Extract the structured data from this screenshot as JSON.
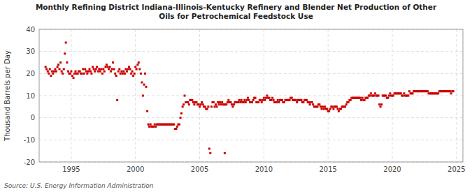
{
  "chart_data": {
    "type": "scatter",
    "title": "Monthly Refining District Indiana-Illinois-Kentucky Refinery and Blender Net Production of Other\nOils for Petrochemical Feedstock Use",
    "y_label": "Thousand Barrels per Day",
    "source": "Source: U.S. Energy Information Administration",
    "color": "#cc0000",
    "marker": "square",
    "grid": true,
    "xlim": [
      1992.5,
      2025.5
    ],
    "xticks": [
      1995,
      2000,
      2005,
      2010,
      2015,
      2020,
      2025
    ],
    "ylim": [
      -20,
      40
    ],
    "yticks": [
      -20,
      -10,
      0,
      10,
      20,
      30,
      40
    ],
    "x": [
      1993.0,
      1993.08,
      1993.17,
      1993.25,
      1993.33,
      1993.42,
      1993.5,
      1993.58,
      1993.67,
      1993.75,
      1993.83,
      1993.92,
      1994.0,
      1994.08,
      1994.17,
      1994.25,
      1994.33,
      1994.42,
      1994.5,
      1994.58,
      1994.67,
      1994.75,
      1994.83,
      1994.92,
      1995.0,
      1995.08,
      1995.17,
      1995.25,
      1995.33,
      1995.42,
      1995.5,
      1995.58,
      1995.67,
      1995.75,
      1995.83,
      1995.92,
      1996.0,
      1996.08,
      1996.17,
      1996.25,
      1996.33,
      1996.42,
      1996.5,
      1996.58,
      1996.67,
      1996.75,
      1996.83,
      1996.92,
      1997.0,
      1997.08,
      1997.17,
      1997.25,
      1997.33,
      1997.42,
      1997.5,
      1997.58,
      1997.67,
      1997.75,
      1997.83,
      1997.92,
      1998.0,
      1998.08,
      1998.17,
      1998.25,
      1998.33,
      1998.42,
      1998.5,
      1998.58,
      1998.67,
      1998.75,
      1998.83,
      1998.92,
      1999.0,
      1999.08,
      1999.17,
      1999.25,
      1999.33,
      1999.42,
      1999.5,
      1999.58,
      1999.67,
      1999.75,
      1999.83,
      1999.92,
      2000.0,
      2000.08,
      2000.17,
      2000.25,
      2000.33,
      2000.42,
      2000.5,
      2000.58,
      2000.67,
      2000.75,
      2000.83,
      2000.92,
      2001.0,
      2001.08,
      2001.17,
      2001.25,
      2001.33,
      2001.42,
      2001.5,
      2001.58,
      2001.67,
      2001.75,
      2001.83,
      2001.92,
      2002.0,
      2002.08,
      2002.17,
      2002.25,
      2002.33,
      2002.42,
      2002.5,
      2002.58,
      2002.67,
      2002.75,
      2002.83,
      2002.92,
      2003.0,
      2003.08,
      2003.17,
      2003.25,
      2003.33,
      2003.42,
      2003.5,
      2003.58,
      2003.67,
      2003.75,
      2003.83,
      2003.92,
      2004.0,
      2004.08,
      2004.17,
      2004.25,
      2004.33,
      2004.42,
      2004.5,
      2004.58,
      2004.67,
      2004.75,
      2004.83,
      2004.92,
      2005.0,
      2005.08,
      2005.17,
      2005.25,
      2005.33,
      2005.42,
      2005.5,
      2005.58,
      2005.67,
      2005.75,
      2005.83,
      2005.92,
      2006.0,
      2006.08,
      2006.17,
      2006.25,
      2006.33,
      2006.42,
      2006.5,
      2006.58,
      2006.67,
      2006.75,
      2006.83,
      2006.92,
      2006.95,
      2007.0,
      2007.08,
      2007.17,
      2007.25,
      2007.33,
      2007.42,
      2007.5,
      2007.58,
      2007.67,
      2007.75,
      2007.83,
      2007.92,
      2008.0,
      2008.08,
      2008.17,
      2008.25,
      2008.33,
      2008.42,
      2008.5,
      2008.58,
      2008.67,
      2008.75,
      2008.83,
      2008.92,
      2009.0,
      2009.08,
      2009.17,
      2009.25,
      2009.33,
      2009.42,
      2009.5,
      2009.58,
      2009.67,
      2009.75,
      2009.83,
      2009.92,
      2010.0,
      2010.08,
      2010.17,
      2010.25,
      2010.33,
      2010.42,
      2010.5,
      2010.58,
      2010.67,
      2010.75,
      2010.83,
      2010.92,
      2011.0,
      2011.08,
      2011.17,
      2011.25,
      2011.33,
      2011.42,
      2011.5,
      2011.58,
      2011.67,
      2011.75,
      2011.83,
      2011.92,
      2012.0,
      2012.08,
      2012.17,
      2012.25,
      2012.33,
      2012.42,
      2012.5,
      2012.58,
      2012.67,
      2012.75,
      2012.83,
      2012.92,
      2013.0,
      2013.08,
      2013.17,
      2013.25,
      2013.33,
      2013.42,
      2013.5,
      2013.58,
      2013.67,
      2013.75,
      2013.83,
      2013.92,
      2014.0,
      2014.08,
      2014.17,
      2014.25,
      2014.33,
      2014.42,
      2014.5,
      2014.58,
      2014.67,
      2014.75,
      2014.83,
      2014.92,
      2015.0,
      2015.08,
      2015.17,
      2015.25,
      2015.33,
      2015.42,
      2015.5,
      2015.58,
      2015.67,
      2015.75,
      2015.83,
      2015.92,
      2016.0,
      2016.08,
      2016.17,
      2016.25,
      2016.33,
      2016.42,
      2016.5,
      2016.58,
      2016.67,
      2016.75,
      2016.83,
      2016.92,
      2017.0,
      2017.08,
      2017.17,
      2017.25,
      2017.33,
      2017.42,
      2017.5,
      2017.58,
      2017.67,
      2017.75,
      2017.83,
      2017.92,
      2018.0,
      2018.08,
      2018.17,
      2018.25,
      2018.33,
      2018.42,
      2018.5,
      2018.58,
      2018.67,
      2018.75,
      2018.83,
      2018.92,
      2019.0,
      2019.08,
      2019.17,
      2019.25,
      2019.33,
      2019.42,
      2019.5,
      2019.58,
      2019.67,
      2019.75,
      2019.83,
      2019.92,
      2020.0,
      2020.08,
      2020.17,
      2020.25,
      2020.33,
      2020.42,
      2020.5,
      2020.58,
      2020.67,
      2020.75,
      2020.83,
      2020.92,
      2021.0,
      2021.08,
      2021.17,
      2021.25,
      2021.33,
      2021.42,
      2021.5,
      2021.58,
      2021.67,
      2021.75,
      2021.83,
      2021.92,
      2022.0,
      2022.08,
      2022.17,
      2022.25,
      2022.33,
      2022.42,
      2022.5,
      2022.58,
      2022.67,
      2022.75,
      2022.83,
      2022.92,
      2023.0,
      2023.08,
      2023.17,
      2023.25,
      2023.33,
      2023.42,
      2023.5,
      2023.58,
      2023.67,
      2023.75,
      2023.83,
      2023.92,
      2024.0,
      2024.08,
      2024.17,
      2024.25,
      2024.33,
      2024.42,
      2024.5,
      2024.58,
      2024.67,
      2024.75
    ],
    "values": [
      23,
      22,
      21,
      20,
      22,
      19,
      21,
      20,
      21,
      22,
      21,
      23,
      24,
      22,
      25,
      21,
      20,
      22,
      29,
      34,
      25,
      21,
      20,
      20,
      21,
      19,
      18,
      20,
      21,
      20,
      20,
      21,
      21,
      20,
      20,
      22,
      20,
      22,
      21,
      20,
      21,
      22,
      21,
      20,
      23,
      22,
      21,
      22,
      23,
      21,
      22,
      21,
      22,
      20,
      22,
      21,
      23,
      24,
      23,
      22,
      23,
      21,
      22,
      25,
      22,
      20,
      19,
      8,
      21,
      22,
      20,
      21,
      20,
      21,
      20,
      22,
      21,
      22,
      23,
      22,
      20,
      21,
      19,
      20,
      23,
      22,
      24,
      25,
      22,
      20,
      16,
      10,
      15,
      20,
      14,
      3,
      -3,
      -4,
      -3,
      -4,
      -4,
      -4,
      -3,
      -4,
      -3,
      -3,
      -3,
      -3,
      -3,
      -3,
      -3,
      -3,
      -3,
      -3,
      -3,
      -3,
      -3,
      -3,
      -3,
      -3,
      -3,
      -5,
      -5,
      -4,
      -3,
      -3,
      0,
      2,
      5,
      6,
      10,
      7,
      7,
      7,
      6,
      8,
      8,
      8,
      7,
      6,
      7,
      7,
      6,
      6,
      5,
      6,
      7,
      6,
      5,
      5,
      4,
      4,
      5,
      -14,
      -16,
      5,
      7,
      7,
      5,
      6,
      5,
      7,
      6,
      7,
      6,
      7,
      6,
      6,
      -16,
      6,
      6,
      7,
      8,
      7,
      7,
      6,
      5,
      6,
      7,
      7,
      7,
      7,
      8,
      7,
      8,
      7,
      7,
      8,
      7,
      8,
      9,
      8,
      7,
      7,
      7,
      8,
      9,
      9,
      7,
      7,
      7,
      8,
      8,
      7,
      8,
      9,
      8,
      9,
      10,
      9,
      9,
      8,
      8,
      9,
      8,
      7,
      7,
      7,
      8,
      7,
      8,
      8,
      8,
      7,
      7,
      8,
      8,
      8,
      8,
      8,
      9,
      9,
      8,
      8,
      8,
      8,
      7,
      8,
      8,
      8,
      8,
      7,
      7,
      8,
      8,
      8,
      7,
      7,
      6,
      7,
      7,
      6,
      5,
      5,
      5,
      5,
      6,
      6,
      5,
      4,
      5,
      4,
      5,
      4,
      4,
      3,
      3,
      4,
      5,
      5,
      4,
      5,
      5,
      5,
      4,
      3,
      4,
      4,
      5,
      5,
      5,
      5,
      6,
      7,
      7,
      8,
      8,
      9,
      9,
      9,
      9,
      9,
      9,
      9,
      9,
      9,
      8,
      9,
      8,
      8,
      9,
      9,
      9,
      10,
      10,
      11,
      10,
      10,
      10,
      11,
      10,
      10,
      10,
      6,
      5,
      6,
      10,
      10,
      10,
      10,
      9,
      9,
      10,
      11,
      10,
      10,
      10,
      11,
      11,
      11,
      11,
      11,
      11,
      11,
      10,
      10,
      11,
      10,
      10,
      10,
      10,
      12,
      11,
      11,
      11,
      12,
      12,
      12,
      12,
      12,
      12,
      12,
      12,
      12,
      12,
      12,
      12,
      12,
      12,
      11,
      11,
      11,
      11,
      11,
      11,
      11,
      11,
      11,
      11,
      12,
      12,
      12,
      12,
      12,
      12,
      12,
      12,
      12,
      12,
      12,
      11,
      12,
      12
    ]
  }
}
